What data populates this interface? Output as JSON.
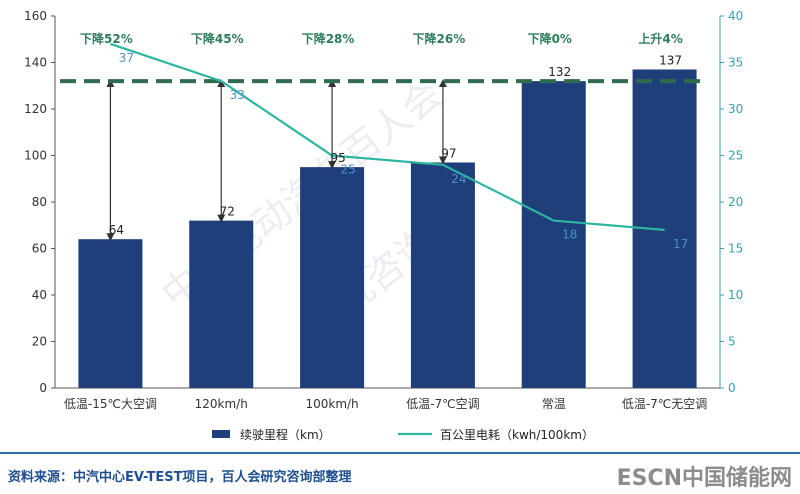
{
  "chart_data": {
    "type": "bar",
    "categories": [
      "低温-15℃大空调",
      "120km/h",
      "100km/h",
      "低温-7℃空调",
      "常温",
      "低温-7℃无空调"
    ],
    "series": [
      {
        "name": "续驶里程（km）",
        "type": "bar",
        "axis": "left",
        "values": [
          64,
          72,
          95,
          97,
          132,
          137
        ]
      },
      {
        "name": "百公里电耗（kwh/100km）",
        "type": "line",
        "axis": "right",
        "values": [
          37,
          33,
          25,
          24,
          18,
          17
        ]
      }
    ],
    "left_axis": {
      "min": 0,
      "max": 160,
      "ticks": [
        "0",
        "20",
        "40",
        "60",
        "80",
        "100",
        "120",
        "140",
        "160"
      ]
    },
    "right_axis": {
      "min": 0,
      "max": 40,
      "ticks": [
        "0",
        "5",
        "10",
        "15",
        "20",
        "25",
        "30",
        "35",
        "40"
      ]
    },
    "reference_line": {
      "value": 132,
      "style": "dashed"
    },
    "annotations": [
      "下降52%",
      "下降45%",
      "下降28%",
      "下降26%",
      "下降0%",
      "上升4%"
    ],
    "legend": [
      "续驶里程（km）",
      "百公里电耗（kwh/100km）"
    ],
    "colors": {
      "bar": "#1f3f7a",
      "line": "#2cb5a0",
      "reference": "#2e6b4f",
      "arrow": "#333333"
    }
  },
  "watermark": {
    "line1": "中国电动汽车百人会",
    "line2": "研究咨询部"
  },
  "footer": {
    "source": "资料来源：中汽中心EV-TEST项目，百人会研究咨询部整理",
    "brand": "ESCN中国储能网"
  }
}
